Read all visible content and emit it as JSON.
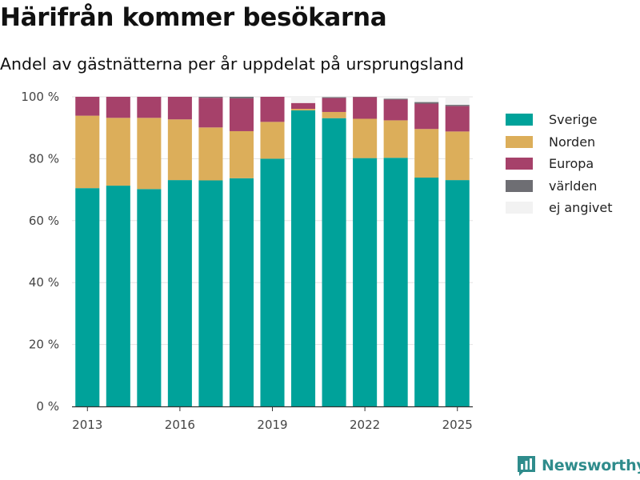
{
  "chart_data": {
    "type": "bar",
    "stacked": true,
    "title": "Härifrån kommer besökarna",
    "subtitle": "Andel av gästnätterna per år uppdelat på ursprungsland",
    "x": [
      2013,
      2014,
      2015,
      2016,
      2017,
      2018,
      2019,
      2020,
      2021,
      2022,
      2023,
      2024,
      2025
    ],
    "x_tick_labels": [
      "2013",
      "2016",
      "2019",
      "2022",
      "2025"
    ],
    "x_tick_values": [
      2013,
      2016,
      2019,
      2022,
      2025
    ],
    "ylim": [
      0,
      100
    ],
    "y_ticks": [
      0,
      20,
      40,
      60,
      80,
      100
    ],
    "y_tick_labels": [
      "0 %",
      "20 %",
      "40 %",
      "60 %",
      "80 %",
      "100 %"
    ],
    "grid": true,
    "legend_position": "right",
    "series": [
      {
        "name": "Sverige",
        "color": "#00a29a",
        "values": [
          70.5,
          71.3,
          70.2,
          73.1,
          73.0,
          73.7,
          80.0,
          95.6,
          93.1,
          80.2,
          80.3,
          73.9,
          73.1
        ]
      },
      {
        "name": "Norden",
        "color": "#dcae5a",
        "values": [
          23.4,
          21.9,
          23.0,
          19.6,
          17.1,
          15.2,
          11.9,
          0.5,
          2.0,
          12.7,
          12.1,
          15.7,
          15.7
        ]
      },
      {
        "name": "Europa",
        "color": "#a6416a",
        "values": [
          6.1,
          6.8,
          6.8,
          7.3,
          9.6,
          10.6,
          8.1,
          1.9,
          4.5,
          7.0,
          6.7,
          8.2,
          8.2
        ]
      },
      {
        "name": "världen",
        "color": "#6e6e73",
        "values": [
          0,
          0,
          0,
          0,
          0.3,
          0.5,
          0,
          0,
          0.3,
          0.1,
          0.3,
          0.5,
          0.4
        ]
      },
      {
        "name": "ej angivet",
        "color": "#f2f2f2",
        "values": [
          0,
          0,
          0,
          0,
          0,
          0,
          0,
          2.0,
          0.1,
          0,
          0.6,
          1.7,
          2.6
        ]
      }
    ]
  },
  "brand": {
    "name": "Newsworthy",
    "icon": "bar-chart-icon",
    "color": "#2f8c8c"
  }
}
